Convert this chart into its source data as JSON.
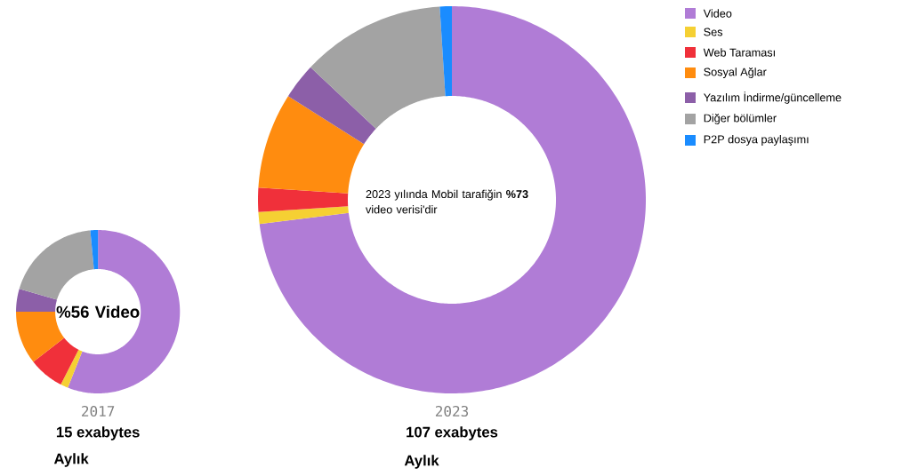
{
  "chart_data": [
    {
      "type": "donut",
      "categories": [
        null,
        null,
        null,
        null,
        null,
        null,
        null
      ],
      "values": [
        56,
        1.5,
        7,
        10.5,
        4.5,
        19,
        1.5
      ],
      "colors": [
        "#b07cd6",
        "#f5d033",
        "#f0303a",
        "#ff8c0f",
        "#8c5fa8",
        "#a3a3a3",
        "#1a8cff"
      ],
      "title": "2017",
      "subtitle": "15 exabytes",
      "annotations": [
        "%56 Video",
        "Aylık"
      ]
    },
    {
      "type": "donut",
      "categories": [
        "Video",
        "Ses",
        "Web Taraması",
        "Sosyal Ağlar",
        "Yazılım İndirme/güncelleme",
        "Diğer bölümler",
        "P2P dosya paylaşımı"
      ],
      "values": [
        73,
        1,
        2,
        8,
        3,
        12,
        1
      ],
      "colors": [
        "#b07cd6",
        "#f5d033",
        "#f0303a",
        "#ff8c0f",
        "#8c5fa8",
        "#a3a3a3",
        "#1a8cff"
      ],
      "title": "2023",
      "subtitle": "107 exabytes",
      "annotations": [
        "2023 yılında Mobil tarafiğin **%73** video verisi'dir",
        "Aylık"
      ],
      "legend": "right"
    }
  ]
}
